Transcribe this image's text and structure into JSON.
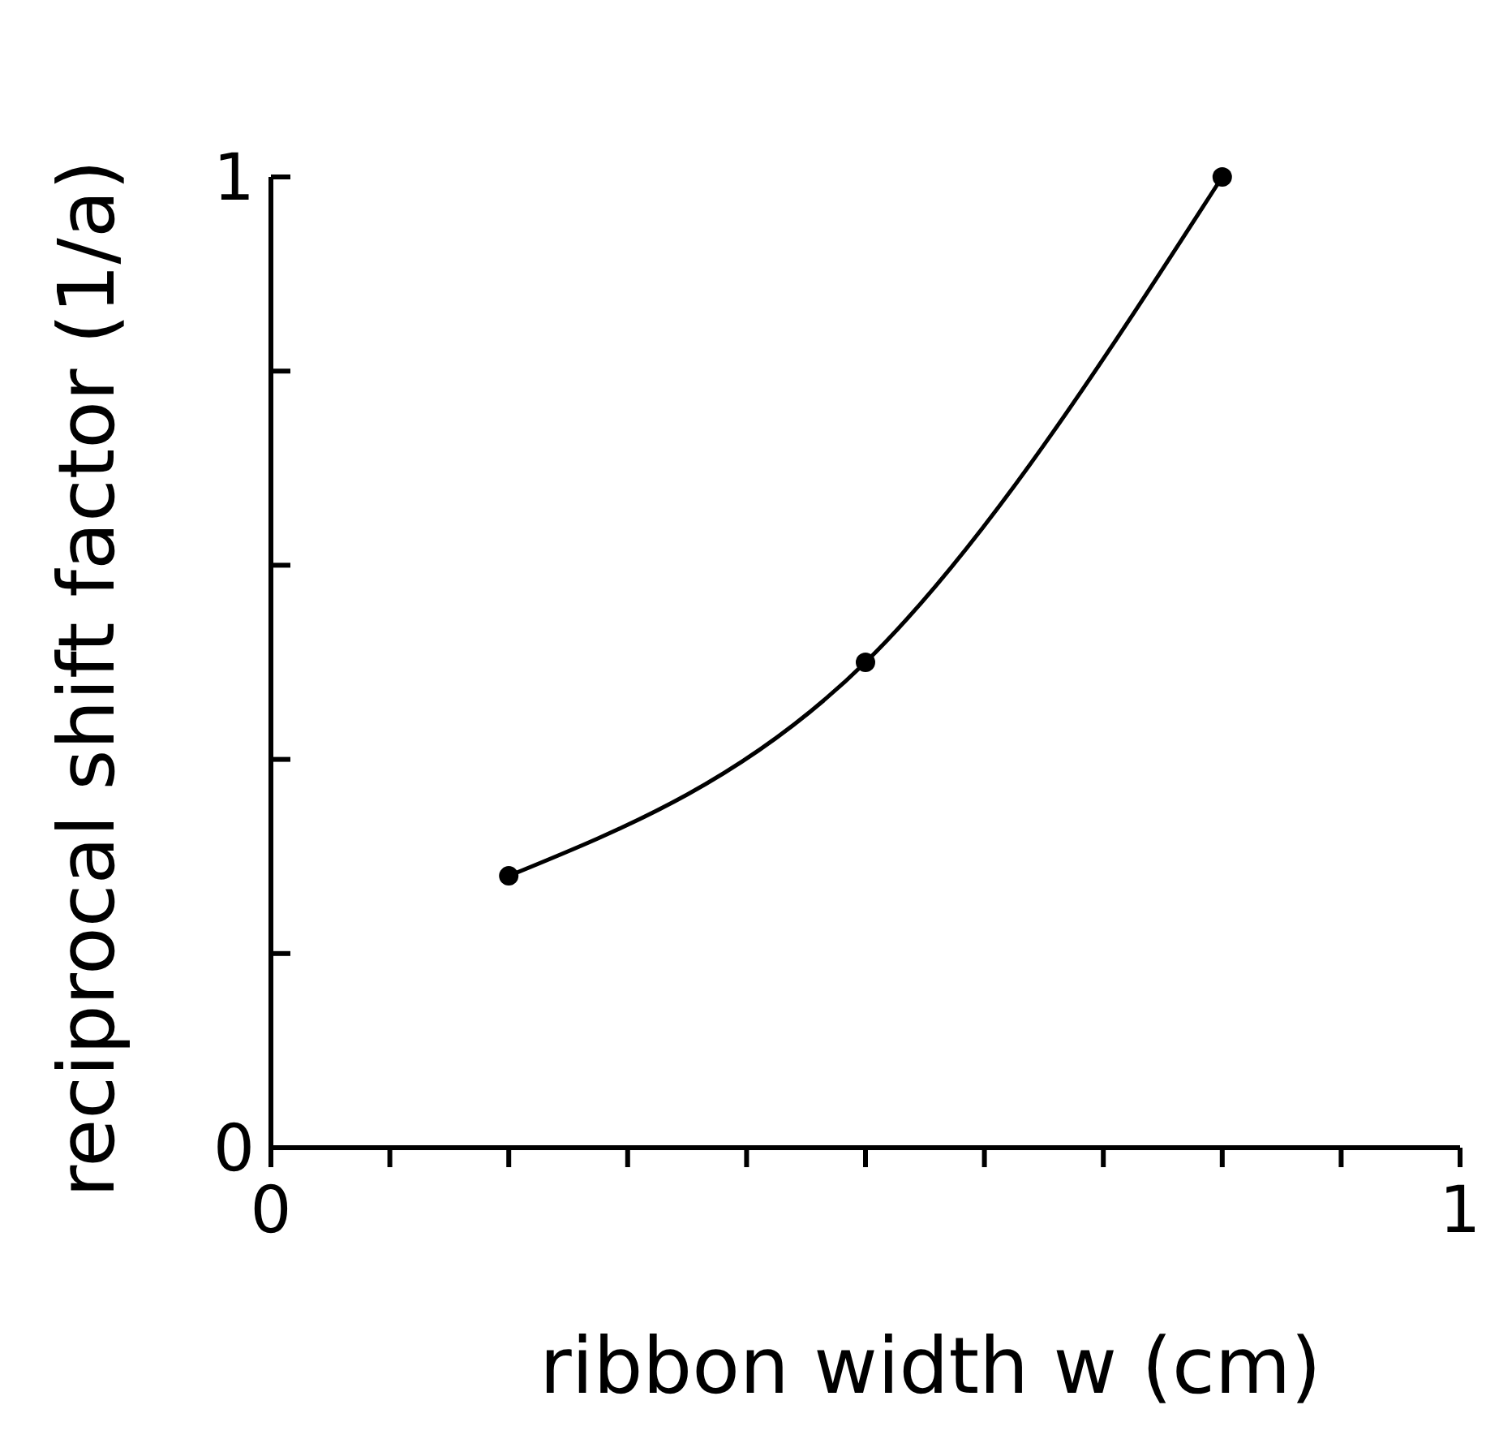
{
  "chart_data": {
    "type": "line",
    "xlabel": "ribbon width w (cm)",
    "ylabel": "reciprocal shift factor (1/a)",
    "x": [
      0.2,
      0.5,
      0.8
    ],
    "series": [
      {
        "color": "#000000",
        "values": [
          0.28,
          0.5,
          1.0
        ]
      }
    ],
    "xlim": [
      0,
      1
    ],
    "ylim": [
      0,
      1
    ],
    "xticks": [
      0,
      {
        "value": 0.1,
        "label": null
      },
      {
        "value": 0.2,
        "label": null
      },
      {
        "value": 0.3,
        "label": null
      },
      {
        "value": 0.4,
        "label": null
      },
      {
        "value": 0.5,
        "label": null
      },
      {
        "value": 0.6,
        "label": null
      },
      {
        "value": 0.7,
        "label": null
      },
      {
        "value": 0.8,
        "label": null
      },
      {
        "value": 0.9,
        "label": null
      },
      1
    ],
    "yticks": [
      0,
      {
        "value": 0.2,
        "label": null
      },
      {
        "value": 0.4,
        "label": null
      },
      {
        "value": 0.6,
        "label": null
      },
      {
        "value": 0.8,
        "label": null
      },
      1
    ],
    "grid": false,
    "marker": "circle",
    "line_style": "solid"
  }
}
